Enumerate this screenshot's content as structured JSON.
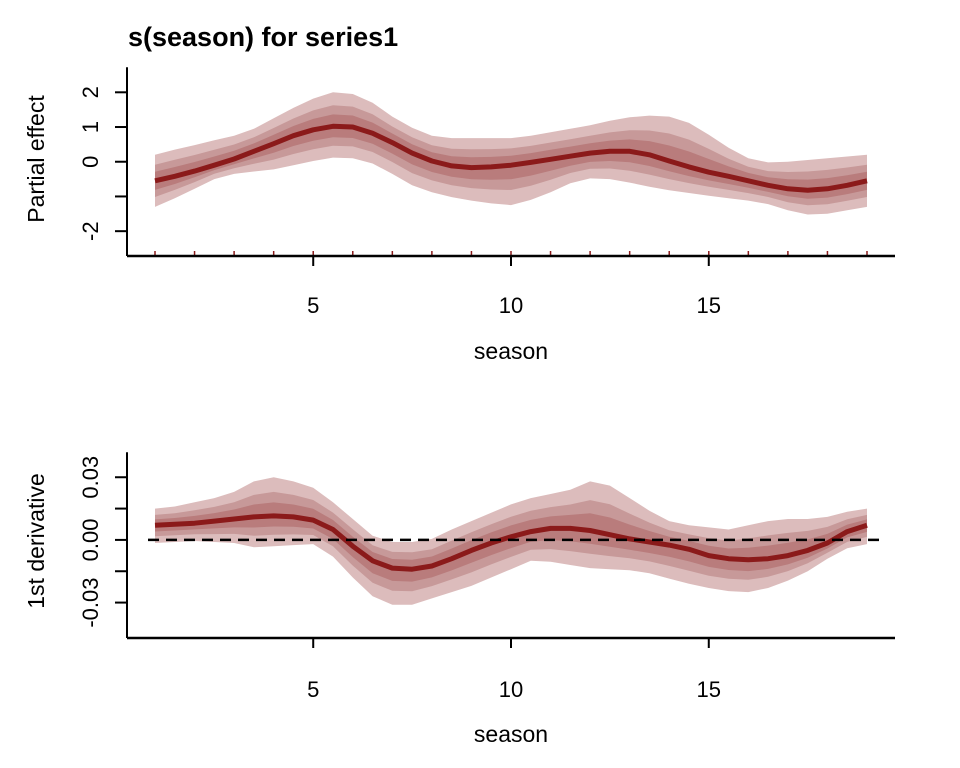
{
  "chart_data": [
    {
      "type": "line",
      "title": "s(season) for series1",
      "xlabel": "season",
      "ylabel": "Partial effect",
      "xlim": [
        1,
        19
      ],
      "ylim": [
        -2.6,
        2.7
      ],
      "x_ticks": [
        "5",
        "10",
        "15"
      ],
      "y_ticks": [
        "2",
        "1",
        "0",
        "",
        "-2"
      ],
      "y_tick_values": [
        2,
        1,
        0,
        -1,
        -2
      ],
      "rug": [
        1,
        2,
        3,
        4,
        5,
        6,
        7,
        8,
        9,
        10,
        11,
        12,
        13,
        14,
        15,
        16,
        17,
        18,
        19
      ],
      "x": [
        1,
        1.5,
        2,
        2.5,
        3,
        3.5,
        4,
        4.5,
        5,
        5.5,
        6,
        6.5,
        7,
        7.5,
        8,
        8.5,
        9,
        9.5,
        10,
        10.5,
        11,
        11.5,
        12,
        12.5,
        13,
        13.5,
        14,
        14.5,
        15,
        15.5,
        16,
        16.5,
        17,
        17.5,
        18,
        18.5,
        19
      ],
      "series": [
        {
          "median": [
            -0.55,
            -0.42,
            -0.27,
            -0.1,
            0.08,
            0.3,
            0.52,
            0.75,
            0.92,
            1.02,
            1.0,
            0.82,
            0.55,
            0.25,
            0.02,
            -0.12,
            -0.17,
            -0.15,
            -0.1,
            -0.02,
            0.07,
            0.16,
            0.25,
            0.3,
            0.3,
            0.2,
            0.02,
            -0.15,
            -0.3,
            -0.42,
            -0.55,
            -0.68,
            -0.78,
            -0.82,
            -0.78,
            -0.68,
            -0.55
          ],
          "lower": [
            -1.3,
            -1.05,
            -0.78,
            -0.5,
            -0.35,
            -0.28,
            -0.22,
            -0.1,
            0.02,
            0.12,
            0.1,
            -0.05,
            -0.35,
            -0.68,
            -0.88,
            -1.02,
            -1.12,
            -1.2,
            -1.25,
            -1.1,
            -0.88,
            -0.62,
            -0.48,
            -0.5,
            -0.6,
            -0.72,
            -0.82,
            -0.9,
            -0.98,
            -1.05,
            -1.12,
            -1.22,
            -1.4,
            -1.52,
            -1.5,
            -1.4,
            -1.3
          ],
          "upper": [
            0.2,
            0.35,
            0.48,
            0.62,
            0.75,
            0.95,
            1.25,
            1.55,
            1.82,
            2.0,
            1.95,
            1.7,
            1.3,
            0.98,
            0.75,
            0.68,
            0.68,
            0.68,
            0.68,
            0.75,
            0.85,
            0.95,
            1.05,
            1.18,
            1.28,
            1.33,
            1.3,
            1.12,
            0.78,
            0.4,
            0.1,
            -0.02,
            0.0,
            0.05,
            0.1,
            0.15,
            0.2
          ]
        }
      ],
      "colors": {
        "line": "#8b1a1a",
        "band_outer": "#dcbcbc",
        "band_mid": "#c79999",
        "band_inner": "#b97c7c"
      }
    },
    {
      "type": "line",
      "title": "",
      "xlabel": "season",
      "ylabel": "1st derivative",
      "xlim": [
        1,
        19
      ],
      "ylim": [
        -0.046,
        0.044
      ],
      "x_ticks": [
        "5",
        "10",
        "15"
      ],
      "y_ticks": [
        "0.03",
        "",
        "0.00",
        "",
        "-0.03"
      ],
      "y_tick_values": [
        0.03,
        0.015,
        0.0,
        -0.015,
        -0.03
      ],
      "reference_line": 0,
      "x": [
        1,
        1.5,
        2,
        2.5,
        3,
        3.5,
        4,
        4.5,
        5,
        5.5,
        6,
        6.5,
        7,
        7.5,
        8,
        8.5,
        9,
        9.5,
        10,
        10.5,
        11,
        11.5,
        12,
        12.5,
        13,
        13.5,
        14,
        14.5,
        15,
        15.5,
        16,
        16.5,
        17,
        17.5,
        18,
        18.5,
        19
      ],
      "series": [
        {
          "median": [
            0.007,
            0.0075,
            0.008,
            0.009,
            0.01,
            0.011,
            0.0115,
            0.011,
            0.0095,
            0.005,
            -0.003,
            -0.01,
            -0.0135,
            -0.014,
            -0.0125,
            -0.009,
            -0.005,
            -0.0015,
            0.0015,
            0.004,
            0.0055,
            0.0055,
            0.0045,
            0.0025,
            0.0005,
            -0.001,
            -0.0025,
            -0.0045,
            -0.0075,
            -0.009,
            -0.0095,
            -0.009,
            -0.0075,
            -0.005,
            -0.0015,
            0.004,
            0.007
          ],
          "lower": [
            -0.0015,
            -0.001,
            -0.0005,
            -0.001,
            -0.0015,
            -0.0035,
            -0.003,
            -0.0025,
            -0.002,
            -0.008,
            -0.018,
            -0.027,
            -0.031,
            -0.031,
            -0.028,
            -0.025,
            -0.022,
            -0.018,
            -0.014,
            -0.01,
            -0.0105,
            -0.012,
            -0.0135,
            -0.014,
            -0.0145,
            -0.016,
            -0.0185,
            -0.021,
            -0.023,
            -0.0245,
            -0.025,
            -0.023,
            -0.0195,
            -0.015,
            -0.009,
            -0.004,
            -0.002
          ],
          "upper": [
            0.015,
            0.016,
            0.018,
            0.02,
            0.023,
            0.028,
            0.03,
            0.028,
            0.025,
            0.018,
            0.01,
            0.002,
            -0.001,
            -0.001,
            0.0005,
            0.005,
            0.009,
            0.013,
            0.017,
            0.02,
            0.022,
            0.024,
            0.028,
            0.026,
            0.02,
            0.014,
            0.009,
            0.007,
            0.006,
            0.005,
            0.007,
            0.009,
            0.01,
            0.01,
            0.011,
            0.0135,
            0.015
          ]
        }
      ],
      "colors": {
        "line": "#8b1a1a",
        "band_outer": "#dcbcbc",
        "band_mid": "#c79999",
        "band_inner": "#b97c7c"
      }
    }
  ]
}
